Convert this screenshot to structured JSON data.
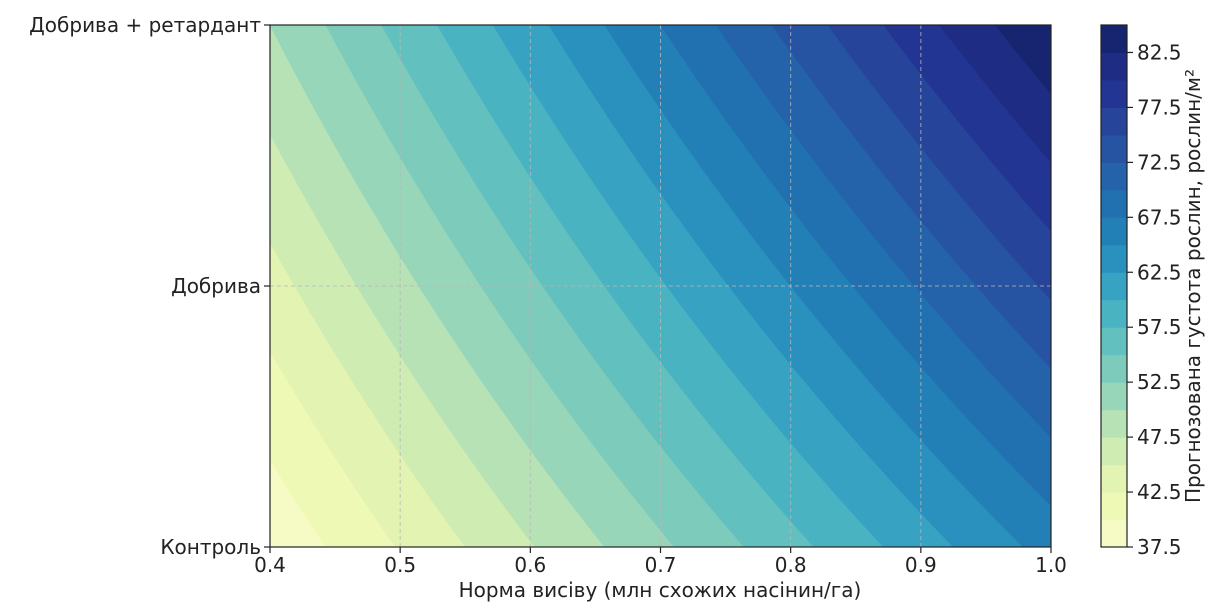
{
  "chart_data": {
    "type": "heatmap",
    "subtype": "filled-contour",
    "xlabel": "Норма висіву (млн схожих насінин/га)",
    "ylabel": "",
    "x_range": [
      0.4,
      1.0
    ],
    "x_ticks": [
      0.4,
      0.5,
      0.6,
      0.7,
      0.8,
      0.9,
      1.0
    ],
    "x_tick_labels": [
      "0.4",
      "0.5",
      "0.6",
      "0.7",
      "0.8",
      "0.9",
      "1.0"
    ],
    "y_categories": [
      "Контроль",
      "Добрива",
      "Добрива + ретардант"
    ],
    "grid": true,
    "model": {
      "description_values": "predicted density at corners",
      "corner_values": [
        {
          "x": 0.4,
          "y": "Контроль",
          "value": 38
        },
        {
          "x": 1.0,
          "y": "Контроль",
          "value": 66
        },
        {
          "x": 0.4,
          "y": "Добрива + ретардант",
          "value": 50
        },
        {
          "x": 1.0,
          "y": "Добрива + ретардант",
          "value": 85
        }
      ]
    },
    "levels": [
      37.5,
      40,
      42.5,
      45,
      47.5,
      50,
      52.5,
      55,
      57.5,
      60,
      62.5,
      65,
      67.5,
      70,
      72.5,
      75,
      77.5,
      80,
      82.5,
      85
    ],
    "colorbar": {
      "label": "Прогнозована густота рослин, рослин/м²",
      "tick_values": [
        37.5,
        42.5,
        47.5,
        52.5,
        57.5,
        62.5,
        67.5,
        72.5,
        77.5,
        82.5
      ],
      "tick_labels": [
        "37.5",
        "42.5",
        "47.5",
        "52.5",
        "57.5",
        "62.5",
        "67.5",
        "72.5",
        "77.5",
        "82.5"
      ],
      "colormap": "YlGnBu",
      "colors": [
        "#f6fbc6",
        "#eff9b6",
        "#e2f3b2",
        "#cfecb3",
        "#b6e2b6",
        "#98d6b9",
        "#7dcbbb",
        "#62c0bf",
        "#4ab3c2",
        "#37a2c1",
        "#2a90be",
        "#2380b7",
        "#2171b1",
        "#2462aa",
        "#2653a2",
        "#26449a",
        "#233592",
        "#1f2c84",
        "#172570"
      ]
    }
  }
}
